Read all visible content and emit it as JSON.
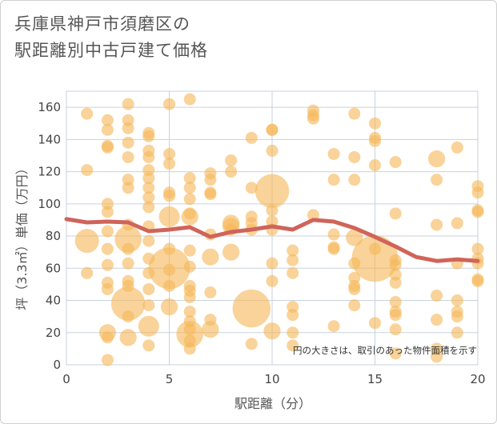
{
  "chart_data": {
    "type": "scatter",
    "title_lines": [
      "兵庫県神戸市須磨区の",
      "駅距離別中古戸建て価格"
    ],
    "xlabel": "駅距離（分）",
    "ylabel": "坪（3.3㎡）単価（万円）",
    "xlim": [
      0,
      20
    ],
    "ylim": [
      0,
      170
    ],
    "x_ticks": [
      0,
      5,
      10,
      15,
      20
    ],
    "y_ticks": [
      0,
      20,
      40,
      60,
      80,
      100,
      120,
      140,
      160
    ],
    "grid": true,
    "note": "円の大きさは、取引のあった物件面積を示す",
    "colors": {
      "bubble": "#f5b85a",
      "trend": "#d0645a",
      "grid": "#c8d2dc"
    },
    "points": [
      {
        "x": 1,
        "y": 156,
        "s": 1
      },
      {
        "x": 1,
        "y": 121,
        "s": 1
      },
      {
        "x": 1,
        "y": 77,
        "s": 4
      },
      {
        "x": 1,
        "y": 57,
        "s": 1
      },
      {
        "x": 2,
        "y": 152,
        "s": 1
      },
      {
        "x": 2,
        "y": 146,
        "s": 1
      },
      {
        "x": 2,
        "y": 136,
        "s": 1
      },
      {
        "x": 2,
        "y": 135,
        "s": 1
      },
      {
        "x": 2,
        "y": 100,
        "s": 1
      },
      {
        "x": 2,
        "y": 95,
        "s": 1
      },
      {
        "x": 2,
        "y": 83,
        "s": 1
      },
      {
        "x": 2,
        "y": 72,
        "s": 1
      },
      {
        "x": 2,
        "y": 62,
        "s": 1
      },
      {
        "x": 2,
        "y": 51,
        "s": 1
      },
      {
        "x": 2,
        "y": 47,
        "s": 1
      },
      {
        "x": 2,
        "y": 20,
        "s": 2
      },
      {
        "x": 2,
        "y": 17,
        "s": 1
      },
      {
        "x": 2,
        "y": 3,
        "s": 1
      },
      {
        "x": 3,
        "y": 162,
        "s": 1
      },
      {
        "x": 3,
        "y": 152,
        "s": 1
      },
      {
        "x": 3,
        "y": 147,
        "s": 1
      },
      {
        "x": 3,
        "y": 138,
        "s": 1
      },
      {
        "x": 3,
        "y": 129,
        "s": 1
      },
      {
        "x": 3,
        "y": 115,
        "s": 1
      },
      {
        "x": 3,
        "y": 110,
        "s": 1
      },
      {
        "x": 3,
        "y": 87,
        "s": 1
      },
      {
        "x": 3,
        "y": 78,
        "s": 5
      },
      {
        "x": 3,
        "y": 72,
        "s": 1
      },
      {
        "x": 3,
        "y": 63,
        "s": 1
      },
      {
        "x": 3,
        "y": 52,
        "s": 1
      },
      {
        "x": 3,
        "y": 49,
        "s": 1
      },
      {
        "x": 3,
        "y": 38,
        "s": 8
      },
      {
        "x": 3,
        "y": 30,
        "s": 1
      },
      {
        "x": 3,
        "y": 17,
        "s": 2
      },
      {
        "x": 4,
        "y": 144,
        "s": 1
      },
      {
        "x": 4,
        "y": 142,
        "s": 1
      },
      {
        "x": 4,
        "y": 133,
        "s": 1
      },
      {
        "x": 4,
        "y": 129,
        "s": 1
      },
      {
        "x": 4,
        "y": 121,
        "s": 1
      },
      {
        "x": 4,
        "y": 116,
        "s": 1
      },
      {
        "x": 4,
        "y": 110,
        "s": 1
      },
      {
        "x": 4,
        "y": 104,
        "s": 1
      },
      {
        "x": 4,
        "y": 98,
        "s": 1
      },
      {
        "x": 4,
        "y": 86,
        "s": 1
      },
      {
        "x": 4,
        "y": 77,
        "s": 1
      },
      {
        "x": 4,
        "y": 66,
        "s": 1
      },
      {
        "x": 4,
        "y": 57,
        "s": 1
      },
      {
        "x": 4,
        "y": 47,
        "s": 1
      },
      {
        "x": 4,
        "y": 37,
        "s": 1
      },
      {
        "x": 4,
        "y": 24,
        "s": 3
      },
      {
        "x": 4,
        "y": 12,
        "s": 1
      },
      {
        "x": 5,
        "y": 162,
        "s": 1
      },
      {
        "x": 5,
        "y": 131,
        "s": 1
      },
      {
        "x": 5,
        "y": 125,
        "s": 1
      },
      {
        "x": 5,
        "y": 107,
        "s": 1
      },
      {
        "x": 5,
        "y": 105,
        "s": 1
      },
      {
        "x": 5,
        "y": 92,
        "s": 3
      },
      {
        "x": 5,
        "y": 72,
        "s": 1
      },
      {
        "x": 5,
        "y": 60,
        "s": 12
      },
      {
        "x": 5,
        "y": 59,
        "s": 1
      },
      {
        "x": 5,
        "y": 49,
        "s": 1
      },
      {
        "x": 5,
        "y": 36,
        "s": 2
      },
      {
        "x": 6,
        "y": 165,
        "s": 1
      },
      {
        "x": 6,
        "y": 116,
        "s": 1
      },
      {
        "x": 6,
        "y": 110,
        "s": 1
      },
      {
        "x": 6,
        "y": 103,
        "s": 1
      },
      {
        "x": 6,
        "y": 94,
        "s": 1
      },
      {
        "x": 6,
        "y": 92,
        "s": 2
      },
      {
        "x": 6,
        "y": 71,
        "s": 1
      },
      {
        "x": 6,
        "y": 61,
        "s": 1
      },
      {
        "x": 6,
        "y": 49,
        "s": 1
      },
      {
        "x": 6,
        "y": 46,
        "s": 1
      },
      {
        "x": 6,
        "y": 42,
        "s": 1
      },
      {
        "x": 6,
        "y": 33,
        "s": 1
      },
      {
        "x": 6,
        "y": 27,
        "s": 1
      },
      {
        "x": 6,
        "y": 22,
        "s": 1
      },
      {
        "x": 6,
        "y": 19,
        "s": 5
      },
      {
        "x": 6,
        "y": 15,
        "s": 1
      },
      {
        "x": 6,
        "y": 10,
        "s": 1
      },
      {
        "x": 7,
        "y": 119,
        "s": 1
      },
      {
        "x": 7,
        "y": 115,
        "s": 1
      },
      {
        "x": 7,
        "y": 107,
        "s": 1
      },
      {
        "x": 7,
        "y": 106,
        "s": 1
      },
      {
        "x": 7,
        "y": 81,
        "s": 1
      },
      {
        "x": 7,
        "y": 67,
        "s": 2
      },
      {
        "x": 7,
        "y": 45,
        "s": 1
      },
      {
        "x": 7,
        "y": 28,
        "s": 1
      },
      {
        "x": 7,
        "y": 22,
        "s": 2
      },
      {
        "x": 8,
        "y": 127,
        "s": 1
      },
      {
        "x": 8,
        "y": 120,
        "s": 1
      },
      {
        "x": 8,
        "y": 88,
        "s": 2
      },
      {
        "x": 8,
        "y": 86,
        "s": 2
      },
      {
        "x": 8,
        "y": 84,
        "s": 1
      },
      {
        "x": 8,
        "y": 70,
        "s": 2
      },
      {
        "x": 9,
        "y": 141,
        "s": 1
      },
      {
        "x": 9,
        "y": 110,
        "s": 1
      },
      {
        "x": 9,
        "y": 92,
        "s": 1
      },
      {
        "x": 9,
        "y": 88,
        "s": 1
      },
      {
        "x": 9,
        "y": 84,
        "s": 1
      },
      {
        "x": 9,
        "y": 35,
        "s": 10
      },
      {
        "x": 9,
        "y": 13,
        "s": 1
      },
      {
        "x": 10,
        "y": 146,
        "s": 1
      },
      {
        "x": 10,
        "y": 146,
        "s": 1
      },
      {
        "x": 10,
        "y": 133,
        "s": 1
      },
      {
        "x": 10,
        "y": 108,
        "s": 8
      },
      {
        "x": 10,
        "y": 96,
        "s": 1
      },
      {
        "x": 10,
        "y": 89,
        "s": 1
      },
      {
        "x": 10,
        "y": 84,
        "s": 1
      },
      {
        "x": 10,
        "y": 63,
        "s": 1
      },
      {
        "x": 10,
        "y": 52,
        "s": 1
      },
      {
        "x": 10,
        "y": 21,
        "s": 2
      },
      {
        "x": 11,
        "y": 71,
        "s": 1
      },
      {
        "x": 11,
        "y": 65,
        "s": 1
      },
      {
        "x": 11,
        "y": 57,
        "s": 1
      },
      {
        "x": 11,
        "y": 36,
        "s": 1
      },
      {
        "x": 11,
        "y": 31,
        "s": 1
      },
      {
        "x": 11,
        "y": 20,
        "s": 1
      },
      {
        "x": 11,
        "y": 12,
        "s": 1
      },
      {
        "x": 12,
        "y": 158,
        "s": 1
      },
      {
        "x": 12,
        "y": 155,
        "s": 1
      },
      {
        "x": 12,
        "y": 153,
        "s": 1
      },
      {
        "x": 12,
        "y": 93,
        "s": 1
      },
      {
        "x": 13,
        "y": 131,
        "s": 1
      },
      {
        "x": 13,
        "y": 115,
        "s": 1
      },
      {
        "x": 13,
        "y": 81,
        "s": 1
      },
      {
        "x": 13,
        "y": 73,
        "s": 1
      },
      {
        "x": 13,
        "y": 72,
        "s": 1
      },
      {
        "x": 13,
        "y": 24,
        "s": 1
      },
      {
        "x": 14,
        "y": 156,
        "s": 1
      },
      {
        "x": 14,
        "y": 129,
        "s": 1
      },
      {
        "x": 14,
        "y": 115,
        "s": 1
      },
      {
        "x": 14,
        "y": 79,
        "s": 2
      },
      {
        "x": 14,
        "y": 63,
        "s": 1
      },
      {
        "x": 14,
        "y": 54,
        "s": 1
      },
      {
        "x": 14,
        "y": 49,
        "s": 1
      },
      {
        "x": 14,
        "y": 47,
        "s": 1
      },
      {
        "x": 14,
        "y": 37,
        "s": 1
      },
      {
        "x": 15,
        "y": 150,
        "s": 1
      },
      {
        "x": 15,
        "y": 141,
        "s": 1
      },
      {
        "x": 15,
        "y": 139,
        "s": 1
      },
      {
        "x": 15,
        "y": 124,
        "s": 1
      },
      {
        "x": 15,
        "y": 72,
        "s": 1
      },
      {
        "x": 15,
        "y": 66,
        "s": 15
      },
      {
        "x": 15,
        "y": 26,
        "s": 1
      },
      {
        "x": 16,
        "y": 126,
        "s": 1
      },
      {
        "x": 16,
        "y": 94,
        "s": 1
      },
      {
        "x": 16,
        "y": 65,
        "s": 1
      },
      {
        "x": 16,
        "y": 62,
        "s": 1
      },
      {
        "x": 16,
        "y": 56,
        "s": 1
      },
      {
        "x": 16,
        "y": 51,
        "s": 1
      },
      {
        "x": 16,
        "y": 39,
        "s": 1
      },
      {
        "x": 16,
        "y": 33,
        "s": 1
      },
      {
        "x": 16,
        "y": 31,
        "s": 1
      },
      {
        "x": 16,
        "y": 22,
        "s": 1
      },
      {
        "x": 16,
        "y": 7,
        "s": 1
      },
      {
        "x": 18,
        "y": 128,
        "s": 2
      },
      {
        "x": 18,
        "y": 115,
        "s": 1
      },
      {
        "x": 18,
        "y": 87,
        "s": 1
      },
      {
        "x": 18,
        "y": 43,
        "s": 1
      },
      {
        "x": 18,
        "y": 28,
        "s": 1
      },
      {
        "x": 18,
        "y": 10,
        "s": 1
      },
      {
        "x": 18,
        "y": 5,
        "s": 1
      },
      {
        "x": 19,
        "y": 135,
        "s": 1
      },
      {
        "x": 19,
        "y": 88,
        "s": 1
      },
      {
        "x": 19,
        "y": 63,
        "s": 1
      },
      {
        "x": 19,
        "y": 40,
        "s": 1
      },
      {
        "x": 19,
        "y": 33,
        "s": 1
      },
      {
        "x": 19,
        "y": 30,
        "s": 1
      },
      {
        "x": 19,
        "y": 20,
        "s": 1
      },
      {
        "x": 20,
        "y": 111,
        "s": 1
      },
      {
        "x": 20,
        "y": 107,
        "s": 1
      },
      {
        "x": 20,
        "y": 96,
        "s": 1
      },
      {
        "x": 20,
        "y": 95,
        "s": 1
      },
      {
        "x": 20,
        "y": 72,
        "s": 1
      },
      {
        "x": 20,
        "y": 66,
        "s": 1
      },
      {
        "x": 20,
        "y": 63,
        "s": 1
      },
      {
        "x": 20,
        "y": 53,
        "s": 1
      },
      {
        "x": 20,
        "y": 52,
        "s": 1
      }
    ],
    "trend": {
      "x": [
        0,
        1,
        2,
        3,
        4,
        5,
        6,
        7,
        8,
        9,
        10,
        11,
        12,
        13,
        14,
        15,
        16,
        17,
        18,
        19,
        20
      ],
      "y": [
        90.5,
        88.5,
        89,
        88.5,
        83,
        84,
        85.5,
        79.5,
        82.5,
        84,
        86,
        84,
        90,
        89,
        85,
        79.5,
        73.5,
        67,
        64.5,
        65.5,
        64.5
      ]
    }
  }
}
